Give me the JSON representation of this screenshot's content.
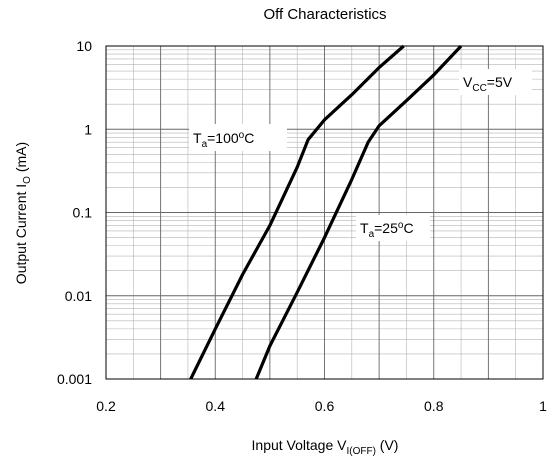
{
  "chart_data": {
    "type": "line",
    "title": "Off Characteristics",
    "xlabel": {
      "main": "Input Voltage V",
      "sub": "I(OFF)",
      "unit": " (V)"
    },
    "ylabel": {
      "main": "Output Current I",
      "sub": "O",
      "unit": " (mA)"
    },
    "xlim": [
      0.2,
      1.0
    ],
    "ylim": [
      0.001,
      10
    ],
    "y_scale": "log",
    "grid": true,
    "x_ticks": [
      {
        "value": 0.2,
        "label": "0.2"
      },
      {
        "value": 0.4,
        "label": "0.4"
      },
      {
        "value": 0.6,
        "label": "0.6"
      },
      {
        "value": 0.8,
        "label": "0.8"
      },
      {
        "value": 1.0,
        "label": "1"
      }
    ],
    "y_ticks": [
      {
        "value": 10,
        "label": "10"
      },
      {
        "value": 1,
        "label": "1"
      },
      {
        "value": 0.1,
        "label": "0.1"
      },
      {
        "value": 0.01,
        "label": "0.01"
      },
      {
        "value": 0.001,
        "label": "0.001"
      }
    ],
    "series": [
      {
        "points": [
          [
            0.355,
            0.001
          ],
          [
            0.4,
            0.004
          ],
          [
            0.45,
            0.018
          ],
          [
            0.5,
            0.07
          ],
          [
            0.55,
            0.35
          ],
          [
            0.57,
            0.75
          ],
          [
            0.6,
            1.3
          ],
          [
            0.65,
            2.6
          ],
          [
            0.7,
            5.5
          ],
          [
            0.745,
            10
          ]
        ]
      },
      {
        "points": [
          [
            0.475,
            0.001
          ],
          [
            0.5,
            0.0025
          ],
          [
            0.55,
            0.011
          ],
          [
            0.6,
            0.05
          ],
          [
            0.65,
            0.25
          ],
          [
            0.68,
            0.7
          ],
          [
            0.7,
            1.1
          ],
          [
            0.75,
            2.2
          ],
          [
            0.8,
            4.5
          ],
          [
            0.85,
            10
          ]
        ]
      }
    ],
    "annotations": [
      {
        "main": "T",
        "sub": "a",
        "rest": "=100",
        "sup": "o",
        "tail": "C"
      },
      {
        "main": "T",
        "sub": "a",
        "rest": "=25",
        "sup": "o",
        "tail": "C"
      },
      {
        "main": "V",
        "sub": "CC",
        "rest": "=5V",
        "sup": "",
        "tail": ""
      }
    ],
    "colors": {
      "line": "#000000",
      "major_grid": "#666666",
      "minor_grid": "#b4b4b4"
    }
  }
}
